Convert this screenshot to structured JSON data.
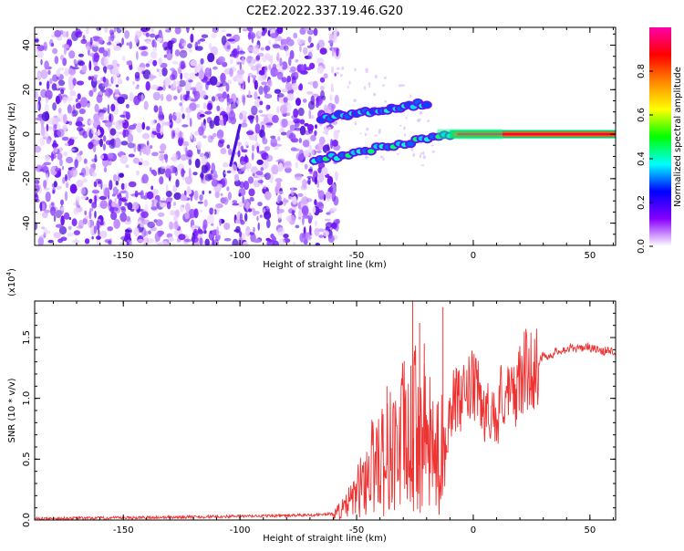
{
  "figure": {
    "title": "C2E2.2022.337.19.46.G20"
  },
  "chart_data": [
    {
      "type": "heatmap",
      "xlabel": "Height of straight line (km)",
      "ylabel": "Frequency (Hz)",
      "xlim": [
        -188,
        61
      ],
      "ylim": [
        -50,
        48
      ],
      "xticks": [
        -150,
        -100,
        -50,
        0,
        50
      ],
      "xtick_labels": [
        "-150",
        "-100",
        "-50",
        "0",
        "50"
      ],
      "yticks": [
        -40,
        -20,
        0,
        20,
        40
      ],
      "ytick_labels": [
        "-40",
        "-20",
        "0",
        "20",
        "40"
      ],
      "grid": false,
      "colorbar": {
        "label": "Normalized spectral amplitude",
        "range": [
          0,
          1
        ],
        "ticks": [
          0.0,
          0.2,
          0.4,
          0.6,
          0.8
        ],
        "tick_labels": [
          "0.0",
          "0.2",
          "0.4",
          "0.6",
          "0.8"
        ],
        "colors": [
          "#ffffff",
          "#8800ff",
          "#0000ff",
          "#00ffff",
          "#00ff00",
          "#ffff00",
          "#ff8800",
          "#ff0000",
          "#ff00aa"
        ]
      },
      "features": {
        "noise_region_x": [
          -188,
          -62
        ],
        "carrier_line": {
          "x_start": -10,
          "x_end": 61,
          "frequency": 0
        },
        "upper_branch": {
          "x_start": -65,
          "x_end": -20,
          "frequency_start": 7,
          "frequency_end": 14
        },
        "lower_branch": {
          "x_start": -68,
          "x_end": -10,
          "frequency_start": -12,
          "frequency_end": 0
        },
        "diagonal_streak": {
          "x_start": -104,
          "x_end": -100,
          "frequency_start": -14,
          "frequency_end": 4
        }
      }
    },
    {
      "type": "line",
      "xlabel": "Height of straight line (km)",
      "ylabel": "SNR (10 * v/v)",
      "y_multiplier": "(x10",
      "y_multiplier_exp": "4",
      "y_multiplier_close": ")",
      "xlim": [
        -188,
        61
      ],
      "ylim": [
        0,
        1.8
      ],
      "xticks": [
        -150,
        -100,
        -50,
        0,
        50
      ],
      "xtick_labels": [
        "-150",
        "-100",
        "-50",
        "0",
        "50"
      ],
      "yticks": [
        0.0,
        0.5,
        1.0,
        1.5
      ],
      "ytick_labels": [
        "0.0",
        "0.5",
        "1.0",
        "1.5"
      ],
      "grid": false,
      "series": [
        {
          "color": "#ee3333",
          "x": [
            -188,
            -140,
            -100,
            -70,
            -60,
            -55,
            -50,
            -45,
            -42,
            -40,
            -38,
            -35,
            -32,
            -30,
            -28,
            -25,
            -23,
            -20,
            -17,
            -15,
            -12,
            -10,
            -8,
            -5,
            -3,
            0,
            3,
            5,
            8,
            10,
            12,
            15,
            18,
            20,
            23,
            25,
            28,
            30,
            33,
            35,
            38,
            40,
            43,
            45,
            48,
            50,
            53,
            55,
            58,
            61
          ],
          "y": [
            0.01,
            0.02,
            0.03,
            0.04,
            0.05,
            0.1,
            0.22,
            0.38,
            0.5,
            0.6,
            0.45,
            0.62,
            0.55,
            0.7,
            0.6,
            0.75,
            0.7,
            0.65,
            0.55,
            0.5,
            0.6,
            0.9,
            1.0,
            0.95,
            1.05,
            1.1,
            1.0,
            0.85,
            0.95,
            0.75,
            1.05,
            1.0,
            1.05,
            1.15,
            1.25,
            1.22,
            1.3,
            1.35,
            1.35,
            1.38,
            1.4,
            1.4,
            1.42,
            1.4,
            1.43,
            1.42,
            1.4,
            1.38,
            1.4,
            1.38
          ],
          "spikes": [
            {
              "x": -26,
              "y": 1.8
            },
            {
              "x": -23,
              "y": 1.62
            },
            {
              "x": -21,
              "y": 1.45
            },
            {
              "x": -13,
              "y": 1.75
            },
            {
              "x": -37,
              "y": 1.1
            }
          ]
        }
      ]
    }
  ]
}
